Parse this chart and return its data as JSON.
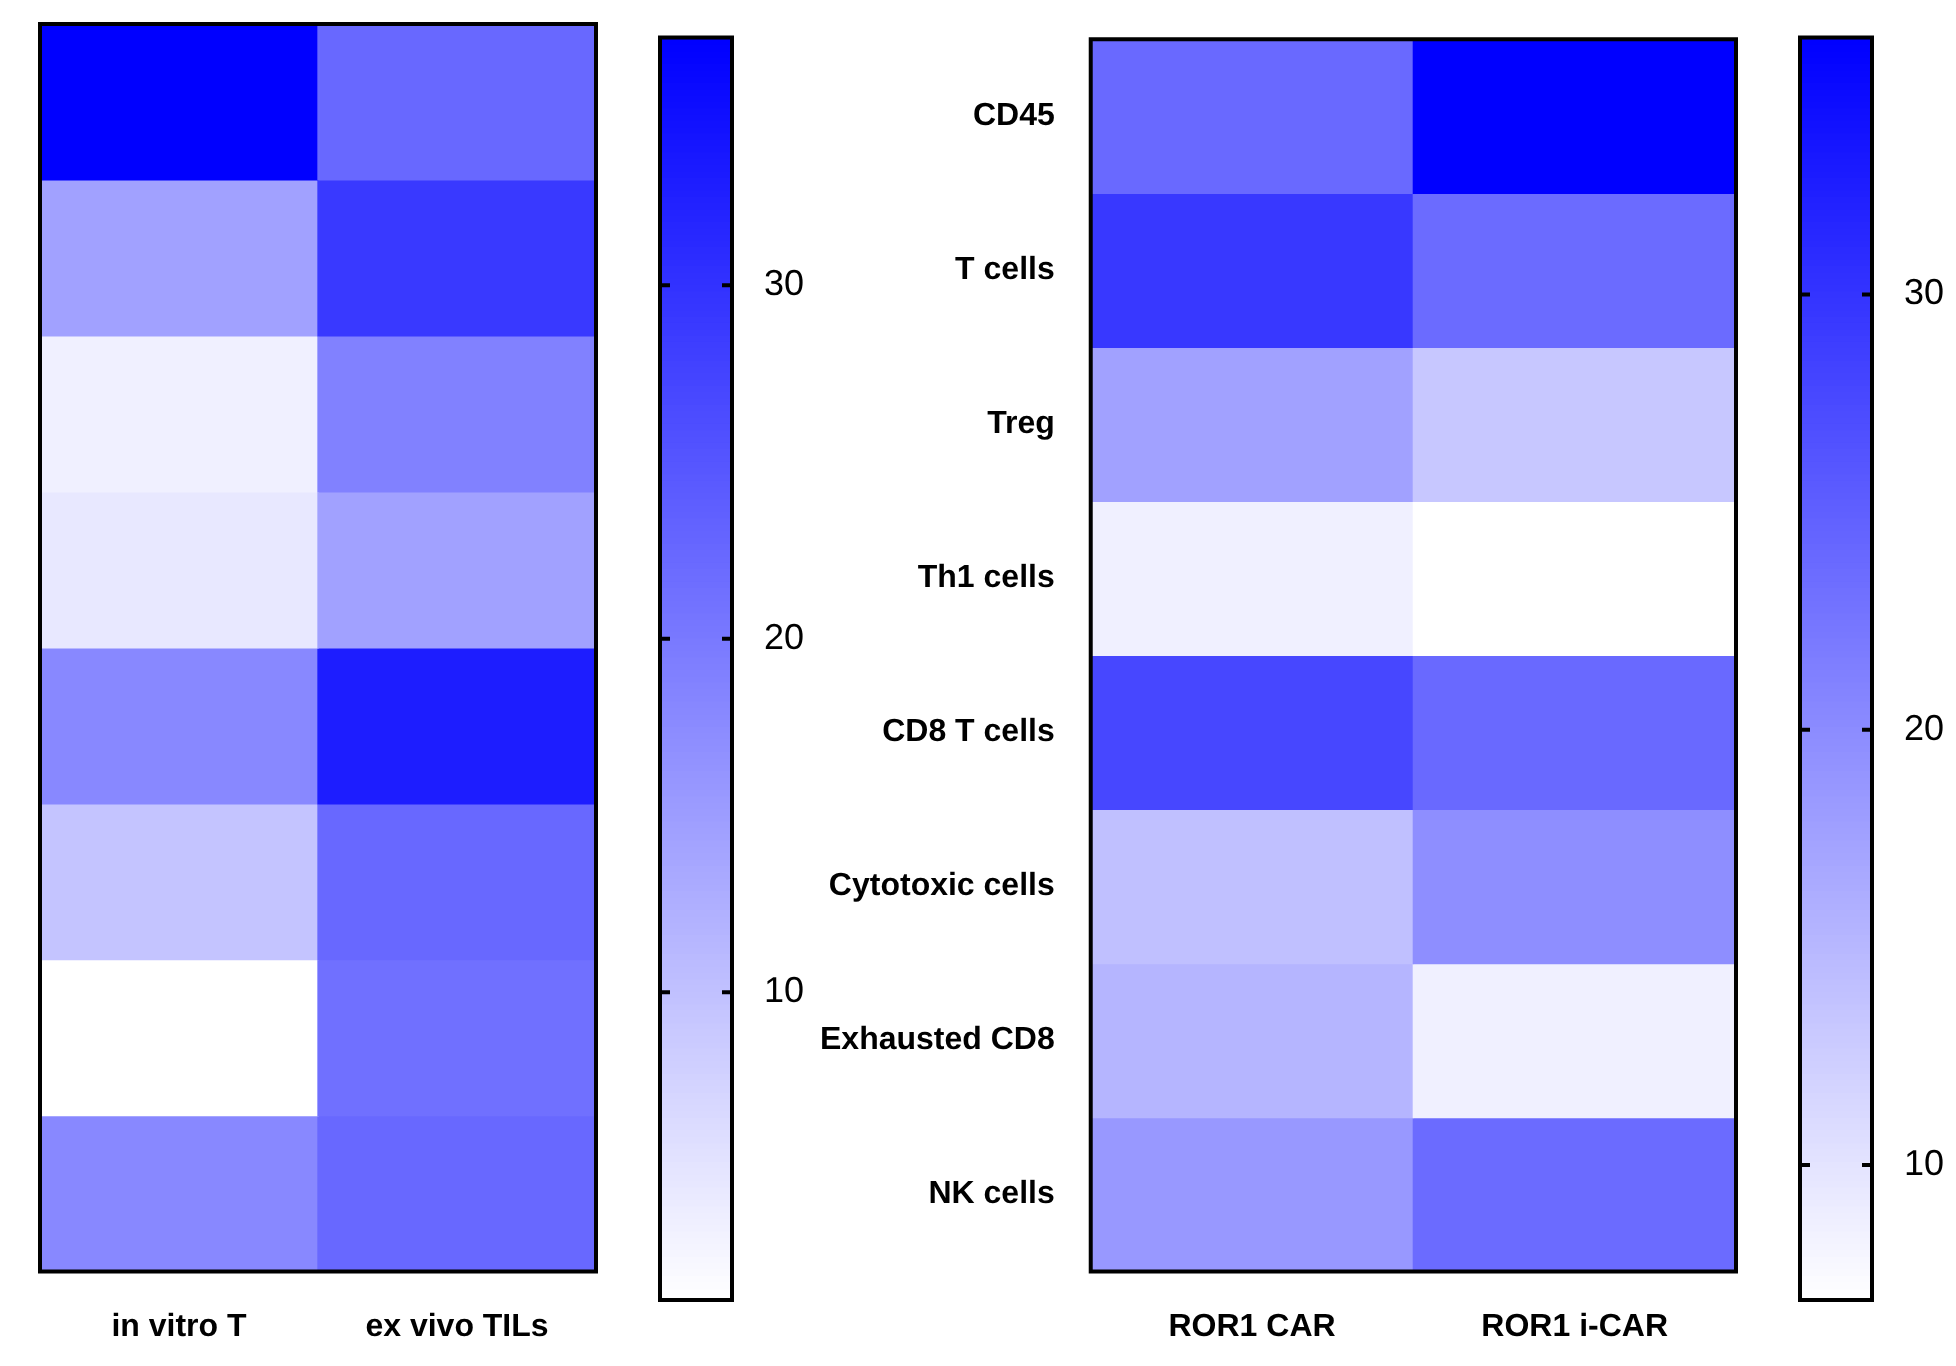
{
  "chart_data": [
    {
      "type": "heatmap",
      "categories": [
        "in vitro T",
        "ex vivo TILs"
      ],
      "y_categories": [
        null,
        null,
        null,
        null,
        null,
        null,
        null,
        null
      ],
      "cells": [
        [
          37,
          22.4
        ],
        [
          14.5,
          29
        ],
        [
          3.4,
          19
        ],
        [
          4.5,
          14.5
        ],
        [
          18,
          33
        ],
        [
          9.5,
          22.4
        ],
        [
          1.3,
          21.3
        ],
        [
          18,
          22.4
        ]
      ],
      "clim": [
        1.3,
        37
      ],
      "cticks": [
        10,
        20,
        30
      ],
      "tick_labels": "x"
    },
    {
      "type": "heatmap",
      "categories": [
        "ROR1 CAR",
        "ROR1 i-CAR"
      ],
      "y_categories": [
        "CD45",
        "T cells",
        "Treg",
        "Th1 cells",
        "CD8 T cells",
        "Cytotoxic cells",
        "Exhausted CD8",
        "NK cells"
      ],
      "cells": [
        [
          24,
          35.9
        ],
        [
          29.5,
          23.7
        ],
        [
          17.6,
          13.3
        ],
        [
          8.6,
          6.9
        ],
        [
          27.8,
          24
        ],
        [
          14.1,
          19.7
        ],
        [
          15.3,
          8.6
        ],
        [
          18.6,
          23.7
        ]
      ],
      "clim": [
        6.9,
        35.9
      ],
      "cticks": [
        10,
        20,
        30
      ]
    }
  ]
}
